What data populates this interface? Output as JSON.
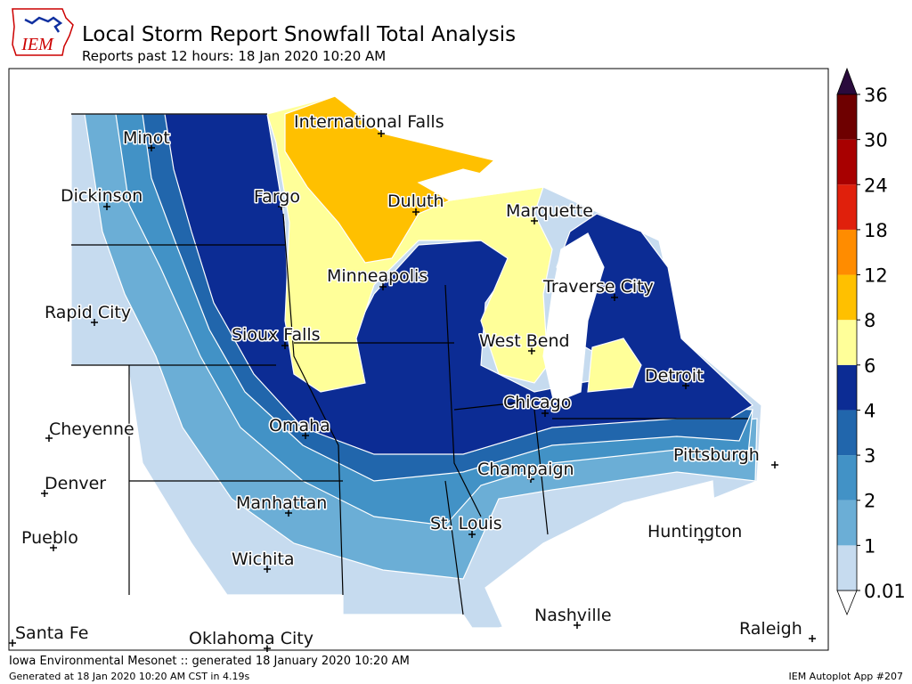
{
  "header": {
    "logo": "IEM",
    "title": "Local Storm Report Snowfall Total Analysis",
    "subtitle": "Reports past 12 hours: 18 Jan 2020 10:20 AM"
  },
  "cities": [
    "International Falls",
    "Minot",
    "Dickinson",
    "Fargo",
    "Duluth",
    "Marquette",
    "Minneapolis",
    "Traverse City",
    "Rapid City",
    "Sioux Falls",
    "West Bend",
    "Detroit",
    "Chicago",
    "Cheyenne",
    "Omaha",
    "Pittsburgh",
    "Champaign",
    "Denver",
    "Manhattan",
    "St. Louis",
    "Huntington",
    "Pueblo",
    "Wichita",
    "Nashville",
    "Santa Fe",
    "Oklahoma City",
    "Raleigh"
  ],
  "legend": {
    "levels": [
      0.01,
      1,
      2,
      3,
      4,
      6,
      8,
      12,
      18,
      24,
      30,
      36
    ],
    "colors": [
      "#c6dbef",
      "#6baed6",
      "#4292c6",
      "#2166ac",
      "#0c2c94",
      "#ffff99",
      "#ffc000",
      "#ff8c00",
      "#e0200c",
      "#a80000",
      "#6e0000"
    ],
    "over_color": "#2a0a3c",
    "under_color": "#ffffff"
  },
  "footer": {
    "source": "Iowa Environmental Mesonet :: generated 18 January 2020 10:20 AM",
    "generated": "Generated at 18 Jan 2020 10:20 AM CST in 4.19s",
    "app": "IEM Autoplot App #207"
  }
}
